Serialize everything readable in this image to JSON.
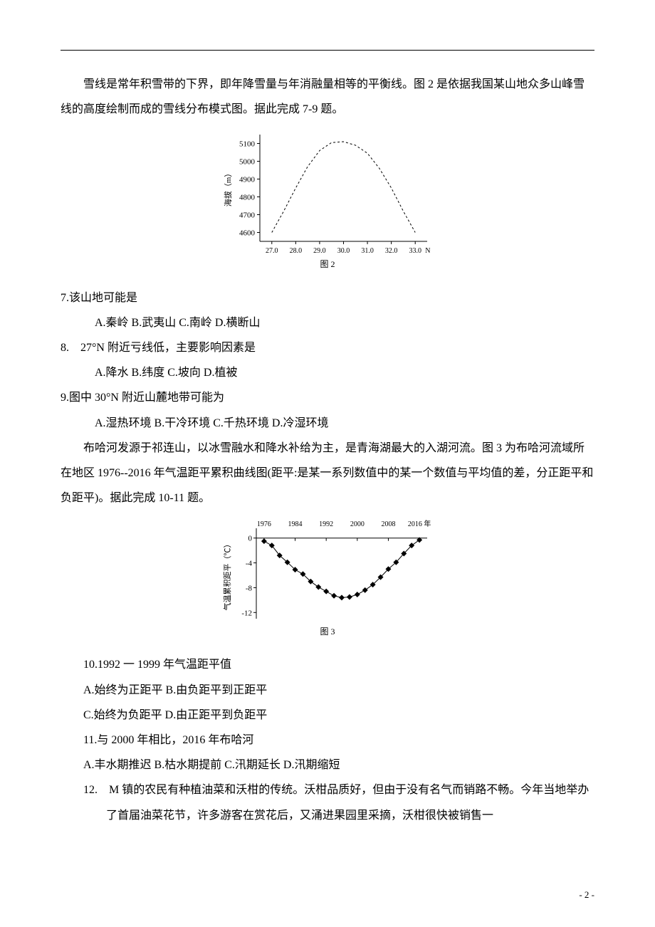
{
  "intro1": "雪线是常年积雪带的下界，即年降雪量与年消融量相等的平衡线。图 2 是依据我国某山地众多山峰雪线的高度绘制而成的雪线分布模式图。据此完成 7-9 题。",
  "chart1": {
    "type": "line",
    "ylabel": "海拔（m）",
    "ytick_labels": [
      "4600",
      "4700",
      "4800",
      "4900",
      "5000",
      "5100"
    ],
    "ytick_positions": [
      4600,
      4700,
      4800,
      4900,
      5000,
      5100
    ],
    "xtick_labels": [
      "27.0",
      "28.0",
      "29.0",
      "30.0",
      "31.0",
      "32.0",
      "33.0"
    ],
    "xtick_positions": [
      27,
      28,
      29,
      30,
      31,
      32,
      33
    ],
    "xlabel_suffix": "N",
    "points": [
      {
        "x": 27.0,
        "y": 4600
      },
      {
        "x": 27.5,
        "y": 4720
      },
      {
        "x": 28.0,
        "y": 4850
      },
      {
        "x": 28.5,
        "y": 4970
      },
      {
        "x": 29.0,
        "y": 5060
      },
      {
        "x": 29.5,
        "y": 5105
      },
      {
        "x": 30.0,
        "y": 5110
      },
      {
        "x": 30.5,
        "y": 5090
      },
      {
        "x": 31.0,
        "y": 5045
      },
      {
        "x": 31.5,
        "y": 4960
      },
      {
        "x": 32.0,
        "y": 4850
      },
      {
        "x": 32.5,
        "y": 4720
      },
      {
        "x": 33.0,
        "y": 4600
      }
    ],
    "line_color": "#000000",
    "dash_pattern": "3,3",
    "caption": "图 2",
    "xlim": [
      26.5,
      33.5
    ],
    "ylim": [
      4550,
      5150
    ]
  },
  "q7": {
    "stem": "7.该山地可能是",
    "options": "A.秦岭 B.武夷山 C.南岭 D.横断山"
  },
  "q8": {
    "stem": "8.　27°N 附近亏线低，主要影响因素是",
    "options": "A.降水 B.纬度 C.坡向 D.植被"
  },
  "q9": {
    "stem": "9.图中 30°N 附近山麓地带可能为",
    "options": "A.湿热环境 B.干冷环境 C.千热环境 D.冷湿环境"
  },
  "intro2": "布哈河发源于祁连山，以冰雪融水和降水补给为主，是青海湖最大的入湖河流。图 3 为布哈河流域所在地区 1976--2016 年气温距平累积曲线图(距平:是某一系列数值中的某一个数值与平均值的差，分正距平和负距平)。据此完成 10-11 题。",
  "chart2": {
    "type": "line",
    "ylabel": "气温累积距平（℃）",
    "ytick_labels": [
      "-12",
      "-8",
      "-4",
      "0"
    ],
    "ytick_positions": [
      -12,
      -8,
      -4,
      0
    ],
    "xtick_labels": [
      "1976",
      "1984",
      "1992",
      "2000",
      "2008",
      "2016 年"
    ],
    "xtick_positions": [
      1976,
      1984,
      1992,
      2000,
      2008,
      2016
    ],
    "points": [
      {
        "x": 1976,
        "y": -0.5
      },
      {
        "x": 1978,
        "y": -1.2
      },
      {
        "x": 1980,
        "y": -2.8
      },
      {
        "x": 1982,
        "y": -3.9
      },
      {
        "x": 1984,
        "y": -5.1
      },
      {
        "x": 1986,
        "y": -5.8
      },
      {
        "x": 1988,
        "y": -7.0
      },
      {
        "x": 1990,
        "y": -7.9
      },
      {
        "x": 1992,
        "y": -8.6
      },
      {
        "x": 1994,
        "y": -9.3
      },
      {
        "x": 1996,
        "y": -9.6
      },
      {
        "x": 1998,
        "y": -9.5
      },
      {
        "x": 2000,
        "y": -9.1
      },
      {
        "x": 2002,
        "y": -8.4
      },
      {
        "x": 2004,
        "y": -7.5
      },
      {
        "x": 2006,
        "y": -6.3
      },
      {
        "x": 2008,
        "y": -5.0
      },
      {
        "x": 2010,
        "y": -3.9
      },
      {
        "x": 2012,
        "y": -2.5
      },
      {
        "x": 2014,
        "y": -1.2
      },
      {
        "x": 2016,
        "y": -0.3
      }
    ],
    "line_color": "#000000",
    "marker": "diamond",
    "marker_size": 4,
    "caption": "图 3",
    "xlim": [
      1974,
      2018
    ],
    "ylim": [
      -13,
      1
    ]
  },
  "q10": {
    "stem": "10.1992 一 1999 年气温距平值",
    "line1": "A.始终为正距平 B.由负距平到正距平",
    "line2": "C.始终为负距平 D.由正距平到负距平"
  },
  "q11": {
    "stem": "11.与 2000 年相比，2016 年布哈河",
    "options": "A.丰水期推迟 B.枯水期提前 C.汛期延长 D.汛期缩短"
  },
  "q12": {
    "stem": "12.　M 镇的农民有种植油菜和沃柑的传统。沃柑品质好，但由于没有名气而销路不畅。今年当地举办了首届油菜花节，许多游客在赏花后，又涌进果园里采摘，沃柑很快被销售一"
  },
  "pagenum": "- 2 -"
}
